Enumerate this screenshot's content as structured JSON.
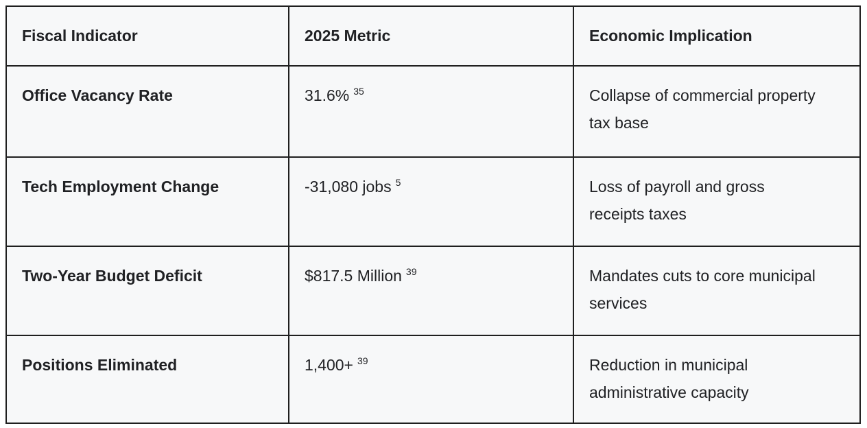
{
  "chart_data": {
    "type": "table",
    "columns": [
      "Fiscal Indicator",
      "2025 Metric",
      "Economic Implication"
    ],
    "rows": [
      {
        "indicator": "Office Vacancy Rate",
        "metric": "31.6%",
        "citation": "35",
        "implication": "Collapse of commercial property tax base"
      },
      {
        "indicator": "Tech Employment Change",
        "metric": "-31,080 jobs",
        "citation": "5",
        "implication": "Loss of payroll and gross receipts taxes"
      },
      {
        "indicator": "Two-Year Budget Deficit",
        "metric": "$817.5 Million",
        "citation": "39",
        "implication": "Mandates cuts to core municipal services"
      },
      {
        "indicator": "Positions Eliminated",
        "metric": "1,400+",
        "citation": "39",
        "implication": "Reduction in municipal administrative capacity"
      }
    ]
  },
  "colors": {
    "border": "#1f1f1f",
    "cell_background": "#f7f8f9",
    "text": "#202124",
    "page_background": "#ffffff"
  }
}
